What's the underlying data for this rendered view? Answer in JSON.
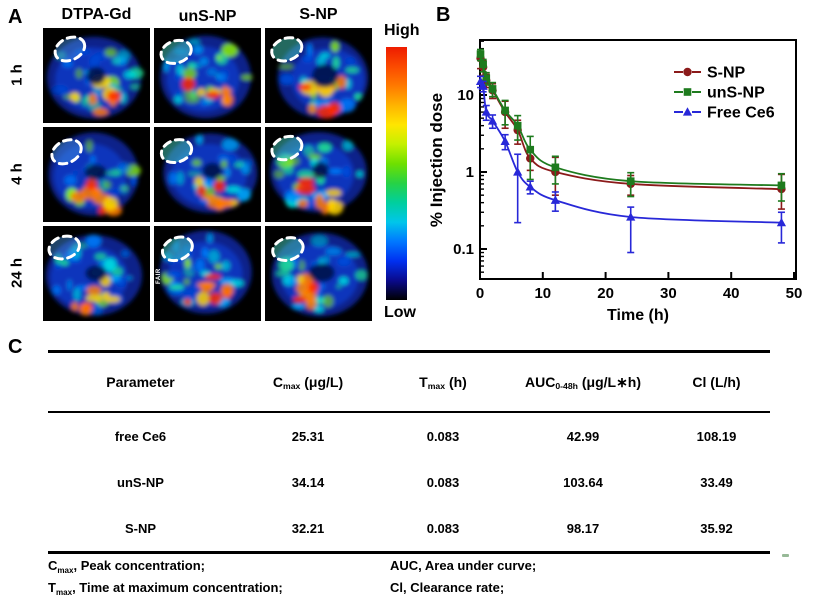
{
  "figure": {
    "panel_a_label": "A",
    "panel_b_label": "B",
    "panel_c_label": "C"
  },
  "panel_a": {
    "col_headers": [
      "DTPA-Gd",
      "unS-NP",
      "S-NP"
    ],
    "row_headers": [
      "1 h",
      "4 h",
      "24 h"
    ],
    "colorbar": {
      "high_label": "High",
      "low_label": "Low",
      "colors": [
        "#ee1c00",
        "#fb4a00",
        "#ff7a00",
        "#ffb400",
        "#ffe600",
        "#c4f000",
        "#6ee000",
        "#27d245",
        "#00cf9e",
        "#00c6ea",
        "#0078ff",
        "#0030f0",
        "#0a0a8c",
        "#000000"
      ]
    },
    "inset_label": "FAIR"
  },
  "chart_data": {
    "type": "line",
    "title": "",
    "xlabel": "Time (h)",
    "ylabel": "% Injection dose",
    "x_ticks": [
      0,
      10,
      20,
      30,
      40,
      50
    ],
    "y_ticks": [
      10,
      1,
      0.1
    ],
    "y_scale": "log",
    "xlim": [
      0,
      50
    ],
    "ylim": [
      0.045,
      52
    ],
    "grid": false,
    "legend_position": "top-right",
    "x": [
      0.083,
      0.5,
      1,
      2,
      4,
      6,
      8,
      12,
      24,
      48
    ],
    "series": [
      {
        "name": "S-NP",
        "color": "#8b1a1a",
        "marker": "circle",
        "values": [
          30,
          23,
          15.5,
          11.5,
          6.0,
          3.5,
          1.5,
          1.0,
          0.7,
          0.6
        ],
        "err_lo": [
          8,
          5,
          3,
          2.5,
          2.3,
          1.2,
          0.45,
          0.5,
          0.2,
          0.27
        ],
        "err_hi": [
          6,
          5,
          3,
          2.5,
          2.3,
          1.2,
          0.45,
          0.55,
          0.2,
          0.33
        ]
      },
      {
        "name": "unS-NP",
        "color": "#1e7b1e",
        "marker": "square",
        "values": [
          34,
          25,
          16.5,
          12,
          6.3,
          4.0,
          1.95,
          1.15,
          0.76,
          0.67
        ],
        "err_lo": [
          6,
          5,
          3,
          2.5,
          2.2,
          1.4,
          1.15,
          0.45,
          0.28,
          0.25
        ],
        "err_hi": [
          5,
          4,
          3,
          2.5,
          2.2,
          1.4,
          0.95,
          0.45,
          0.22,
          0.28
        ]
      },
      {
        "name": "Free Ce6",
        "color": "#2828d8",
        "marker": "triangle",
        "values": [
          15,
          13,
          6.0,
          4.6,
          2.5,
          1.0,
          0.64,
          0.43,
          0.26,
          0.22
        ],
        "err_lo": [
          2.5,
          2,
          1.3,
          0.9,
          0.55,
          0.78,
          0.12,
          0.12,
          0.17,
          0.1
        ],
        "err_hi": [
          2.5,
          2,
          1.3,
          0.9,
          0.55,
          0.7,
          0.12,
          0.12,
          0.09,
          0.08
        ]
      }
    ]
  },
  "table": {
    "headers": [
      {
        "base": "Parameter",
        "sub": "",
        "rest": ""
      },
      {
        "base": "C",
        "sub": "max",
        "rest": " (μg/L)"
      },
      {
        "base": "T",
        "sub": "max",
        "rest": " (h)"
      },
      {
        "base": "AUC",
        "sub": "0-48h",
        "rest": " (μg/L∗h)"
      },
      {
        "base": "Cl",
        "sub": "",
        "rest": " (L/h)"
      }
    ],
    "rows": [
      {
        "name": "free Ce6",
        "cmax": "25.31",
        "tmax": "0.083",
        "auc": "42.99",
        "cl": "108.19"
      },
      {
        "name": "unS-NP",
        "cmax": "34.14",
        "tmax": "0.083",
        "auc": "103.64",
        "cl": "33.49"
      },
      {
        "name": "S-NP",
        "cmax": "32.21",
        "tmax": "0.083",
        "auc": "98.17",
        "cl": "35.92"
      }
    ],
    "footnotes_left": [
      {
        "base": "C",
        "sub": "max",
        "rest": ", Peak concentration;"
      },
      {
        "base": "T",
        "sub": "max",
        "rest": ", Time at maximum concentration;"
      }
    ],
    "footnotes_right": [
      {
        "base": "AUC",
        "sub": "",
        "rest": ", Area under curve;"
      },
      {
        "base": "Cl",
        "sub": "",
        "rest": ", Clearance rate;"
      }
    ]
  }
}
